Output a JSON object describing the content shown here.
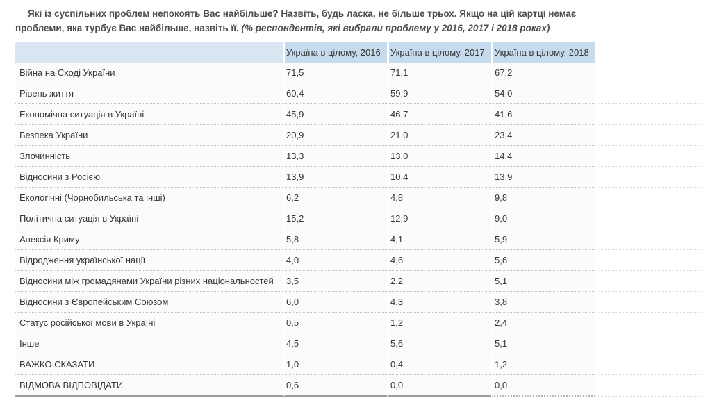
{
  "title": {
    "question_line1": "Які із суспільних проблем непокоять Вас найбільше? Назвіть, будь ласка, не більше трьох. Якщо на цій картці немає",
    "question_line2": "проблеми, яка турбує Вас найбільше, назвіть її.",
    "note": "(% респондентів, які вибрали проблему у 2016, 2017 і 2018 роках)"
  },
  "colors": {
    "header_cell_blue": "#c6dcee",
    "header_label_cell_blue": "#d9e6f2",
    "title_text": "#4d4d4d",
    "table_text": "#363636",
    "row_background": "#fbfbfb",
    "bottom_border": "#9c9c9c"
  },
  "table": {
    "columns": [
      "Україна в цілому, 2016",
      "Україна в цілому, 2017",
      "Україна в цілому, 2018"
    ],
    "rows": [
      {
        "label": "Війна на Сході України",
        "values": [
          "71,5",
          "71,1",
          "67,2"
        ]
      },
      {
        "label": "Рівень життя",
        "values": [
          "60,4",
          "59,9",
          "54,0"
        ]
      },
      {
        "label": "Економічна ситуація в Україні",
        "values": [
          "45,9",
          "46,7",
          "41,6"
        ]
      },
      {
        "label": "Безпека України",
        "values": [
          "20,9",
          "21,0",
          "23,4"
        ]
      },
      {
        "label": "Злочинність",
        "values": [
          "13,3",
          "13,0",
          "14,4"
        ]
      },
      {
        "label": "Відносини з Росією",
        "values": [
          "13,9",
          "10,4",
          "13,9"
        ]
      },
      {
        "label": "Екологічні (Чорнобильська та інші)",
        "values": [
          "6,2",
          "4,8",
          "9,8"
        ]
      },
      {
        "label": "Політична ситуація в Україні",
        "values": [
          "15,2",
          "12,9",
          "9,0"
        ]
      },
      {
        "label": "Анексія Криму",
        "values": [
          "5,8",
          "4,1",
          "5,9"
        ]
      },
      {
        "label": "Відродження української нації",
        "values": [
          "4,0",
          "4,6",
          "5,6"
        ]
      },
      {
        "label": "Відносини між громадянами України різних національностей",
        "values": [
          "3,5",
          "2,2",
          "5,1"
        ]
      },
      {
        "label": "Відносини з Європейським Союзом",
        "values": [
          "6,0",
          "4,3",
          "3,8"
        ]
      },
      {
        "label": "Статус російської мови в Україні",
        "values": [
          "0,5",
          "1,2",
          "2,4"
        ]
      },
      {
        "label": "Інше",
        "values": [
          "4,5",
          "5,6",
          "5,1"
        ]
      },
      {
        "label": "ВАЖКО СКАЗАТИ",
        "values": [
          "1,0",
          "0,4",
          "1,2"
        ]
      },
      {
        "label": "ВІДМОВА ВІДПОВІДАТИ",
        "values": [
          "0,6",
          "0,0",
          "0,0"
        ]
      }
    ]
  },
  "chart_data": {
    "type": "table",
    "title": "Які із суспільних проблем непокоять Вас найбільше? Назвіть, будь ласка, не більше трьох. Якщо на цій картці немає проблеми, яка турбує Вас найбільше, назвіть її.",
    "subtitle": "(% респондентів, які вибрали проблему у 2016, 2017 і 2018 роках)",
    "categories": [
      "Війна на Сході України",
      "Рівень життя",
      "Економічна ситуація в Україні",
      "Безпека України",
      "Злочинність",
      "Відносини з Росією",
      "Екологічні (Чорнобильська та інші)",
      "Політична ситуація в Україні",
      "Анексія Криму",
      "Відродження української нації",
      "Відносини між громадянами України різних національностей",
      "Відносини з Європейським Союзом",
      "Статус російської мови в Україні",
      "Інше",
      "ВАЖКО СКАЗАТИ",
      "ВІДМОВА ВІДПОВІДАТИ"
    ],
    "series": [
      {
        "name": "Україна в цілому, 2016",
        "values": [
          71.5,
          60.4,
          45.9,
          20.9,
          13.3,
          13.9,
          6.2,
          15.2,
          5.8,
          4.0,
          3.5,
          6.0,
          0.5,
          4.5,
          1.0,
          0.6
        ]
      },
      {
        "name": "Україна в цілому, 2017",
        "values": [
          71.1,
          59.9,
          46.7,
          21.0,
          13.0,
          10.4,
          4.8,
          12.9,
          4.1,
          4.6,
          2.2,
          4.3,
          1.2,
          5.6,
          0.4,
          0.0
        ]
      },
      {
        "name": "Україна в цілому, 2018",
        "values": [
          67.2,
          54.0,
          41.6,
          23.4,
          14.4,
          13.9,
          9.8,
          9.0,
          5.9,
          5.6,
          5.1,
          3.8,
          2.4,
          5.1,
          1.2,
          0.0
        ]
      }
    ],
    "unit": "% of respondents"
  }
}
